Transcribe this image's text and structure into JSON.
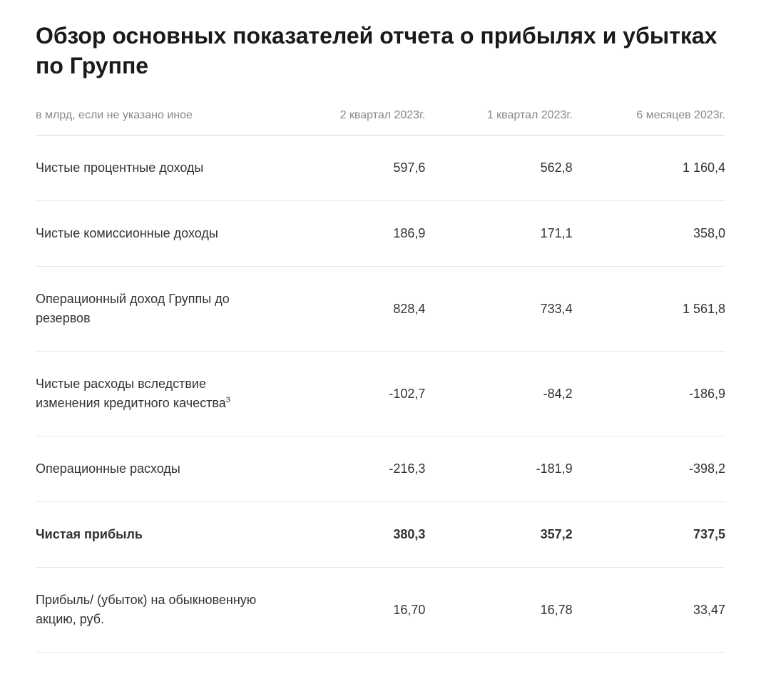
{
  "title": "Обзор основных показателей отчета о прибылях и убытках по Группе",
  "table": {
    "type": "table",
    "columns": [
      "в млрд, если не указано иное",
      "2 квартал 2023г.",
      "1 квартал 2023г.",
      "6 месяцев 2023г."
    ],
    "rows": [
      {
        "bold": false,
        "sup": "",
        "label": "Чистые процентные доходы",
        "v1": "597,6",
        "v2": "562,8",
        "v3": "1 160,4"
      },
      {
        "bold": false,
        "sup": "",
        "label": "Чистые комиссионные доходы",
        "v1": "186,9",
        "v2": "171,1",
        "v3": "358,0"
      },
      {
        "bold": false,
        "sup": "",
        "label": "Операционный доход Группы до резервов",
        "v1": "828,4",
        "v2": "733,4",
        "v3": "1 561,8"
      },
      {
        "bold": false,
        "sup": "3",
        "label": "Чистые расходы вследствие изменения кредитного качества",
        "v1": "-102,7",
        "v2": "-84,2",
        "v3": "-186,9"
      },
      {
        "bold": false,
        "sup": "",
        "label": "Операционные расходы",
        "v1": "-216,3",
        "v2": "-181,9",
        "v3": "-398,2"
      },
      {
        "bold": true,
        "sup": "",
        "label": "Чистая прибыль",
        "v1": "380,3",
        "v2": "357,2",
        "v3": "737,5"
      },
      {
        "bold": false,
        "sup": "",
        "label": "Прибыль/ (убыток) на обыкновенную акцию, руб.",
        "v1": "16,70",
        "v2": "16,78",
        "v3": "33,47"
      }
    ],
    "styling": {
      "background_color": "#ffffff",
      "text_color": "#333333",
      "header_text_color": "#888888",
      "border_color_header": "#d8d8d8",
      "border_color_row": "#e8e8e8",
      "title_fontsize": 32,
      "title_fontweight": 700,
      "header_fontsize": 16,
      "cell_fontsize": 18,
      "row_padding_vertical": 32,
      "column_widths_pct": [
        36,
        21.33,
        21.33,
        21.33
      ],
      "column_alignments": [
        "left",
        "right",
        "right",
        "right"
      ]
    }
  }
}
